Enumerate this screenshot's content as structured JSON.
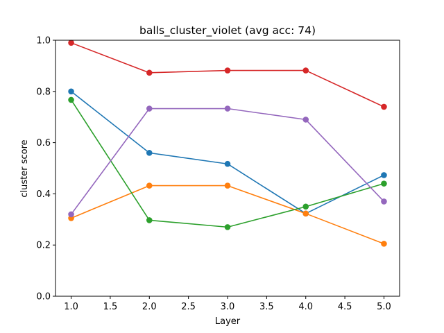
{
  "chart_data": {
    "type": "line",
    "title": "balls_cluster_violet (avg acc: 74)",
    "xlabel": "Layer",
    "ylabel": "cluster score",
    "xlim": [
      0.8,
      5.2
    ],
    "ylim": [
      0.0,
      1.0
    ],
    "grid": false,
    "x": [
      1.0,
      2.0,
      3.0,
      4.0,
      5.0
    ],
    "x_ticks": [
      "1.0",
      "1.5",
      "2.0",
      "2.5",
      "3.0",
      "3.5",
      "4.0",
      "4.5",
      "5.0"
    ],
    "y_ticks": [
      "0.0",
      "0.2",
      "0.4",
      "0.6",
      "0.8",
      "1.0"
    ],
    "series": [
      {
        "color": "#1f77b4",
        "values": [
          0.8,
          0.56,
          0.517,
          0.323,
          0.473
        ]
      },
      {
        "color": "#ff7f0e",
        "values": [
          0.305,
          0.432,
          0.432,
          0.323,
          0.205
        ]
      },
      {
        "color": "#2ca02c",
        "values": [
          0.767,
          0.297,
          0.27,
          0.35,
          0.44
        ]
      },
      {
        "color": "#d62728",
        "values": [
          0.99,
          0.873,
          0.882,
          0.882,
          0.74
        ]
      },
      {
        "color": "#9467bd",
        "values": [
          0.32,
          0.733,
          0.733,
          0.69,
          0.37
        ]
      }
    ]
  }
}
